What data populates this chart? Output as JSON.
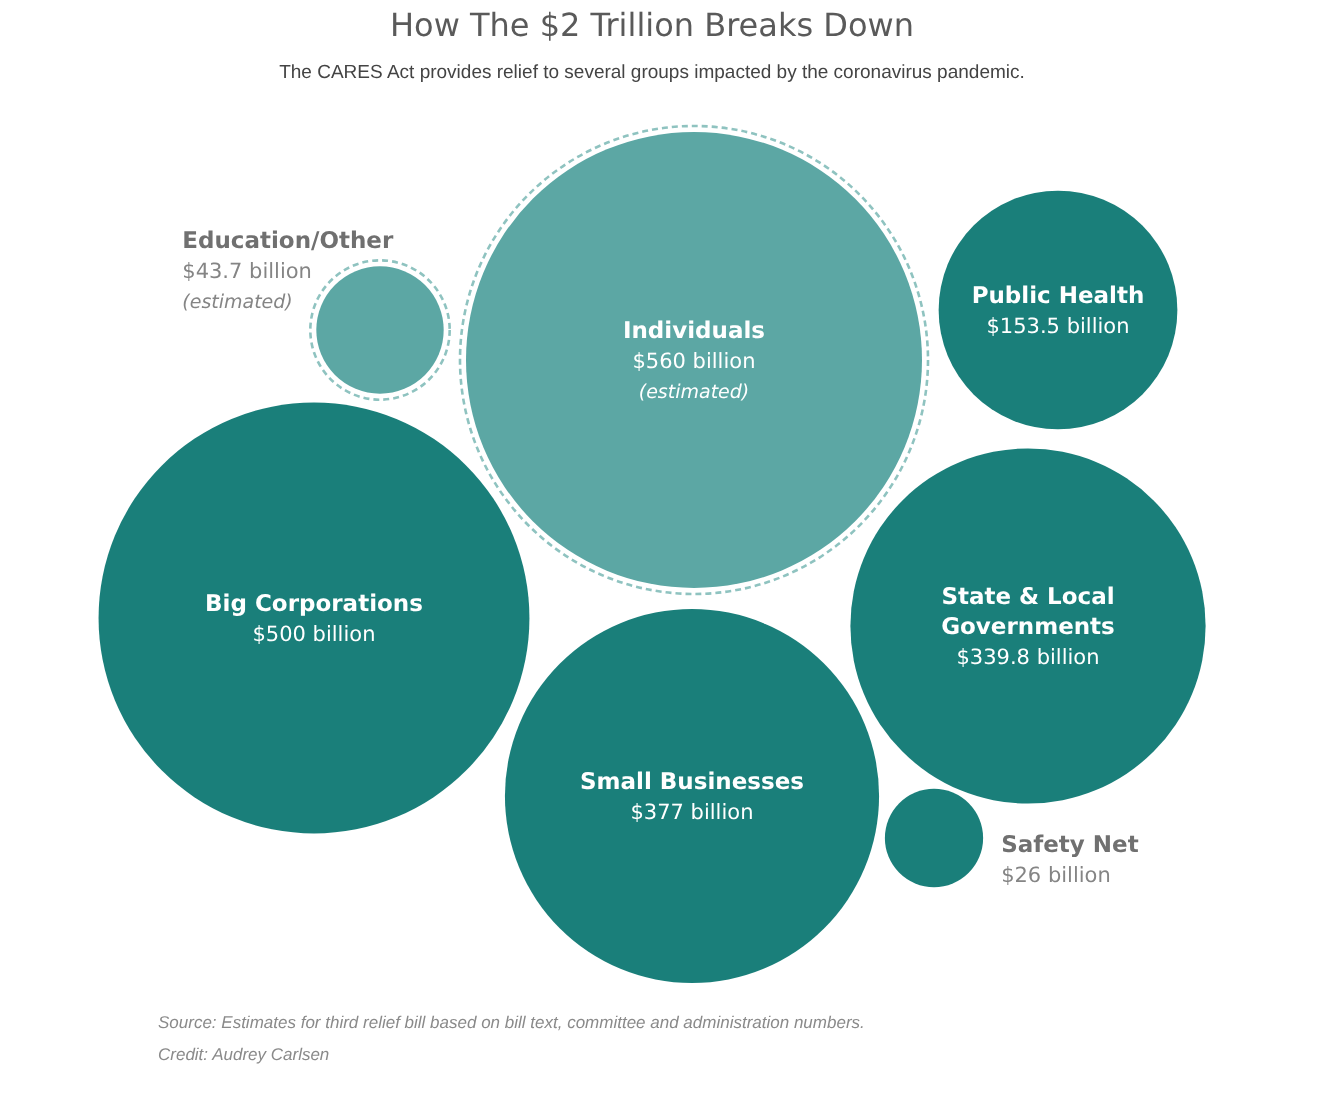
{
  "chart_data": {
    "type": "other",
    "title": "How The $2 Trillion Breaks Down",
    "subtitle": "The CARES Act provides relief to several groups impacted by the coronavirus pandemic.",
    "categories": [
      "Individuals",
      "Big Corporations",
      "Small Businesses",
      "State & Local Governments",
      "Public Health",
      "Education/Other",
      "Safety Net"
    ],
    "series": [
      {
        "color": "#5ca7a4",
        "line_style": "dashed",
        "values": [
          560,
          null,
          null,
          null,
          null,
          43.7,
          null
        ],
        "value_labels": [
          "$560 billion\n(estimated)",
          null,
          null,
          null,
          null,
          "$43.7 billion\n(estimated)",
          null
        ]
      },
      {
        "color": "#1a7f7a",
        "values": [
          null,
          500,
          377,
          339.8,
          153.5,
          null,
          26
        ],
        "value_labels": [
          null,
          "$500 billion",
          "$377 billion",
          "$339.8 billion",
          "$153.5 billion",
          null,
          "$26 billion"
        ]
      }
    ],
    "annotations": [
      "Source: Estimates for third relief bill based on bill text, committee and administration numbers.",
      "Credit: Audrey Carlsen"
    ]
  }
}
